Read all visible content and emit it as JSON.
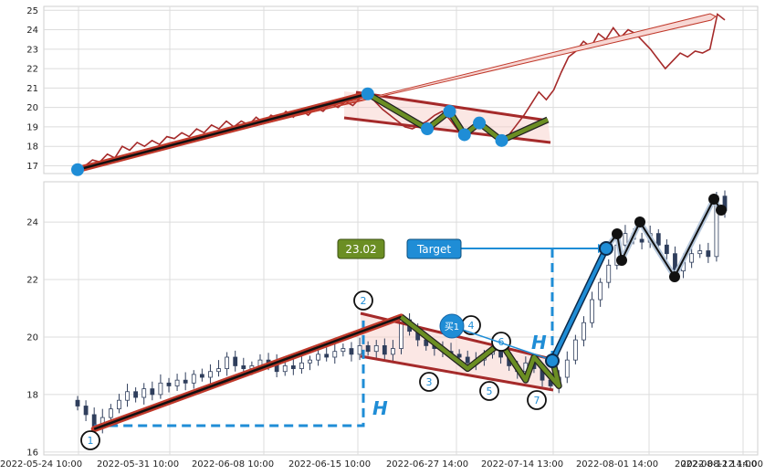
{
  "chart_data": [
    {
      "type": "line",
      "panel": "top",
      "ylim": [
        16.6,
        25.2
      ],
      "yticks": [
        "17",
        "18",
        "19",
        "20",
        "21",
        "22",
        "23",
        "24",
        "25"
      ],
      "grid": true,
      "colors": {
        "price": "#a52a2a",
        "trend": "#c0392b",
        "pattern": "#6b8e23",
        "marker": "#1f8dd6"
      },
      "series": [
        {
          "values": [
            16.8,
            17.0,
            17.3,
            17.2,
            17.6,
            17.4,
            18.0,
            17.8,
            18.2,
            18.0,
            18.3,
            18.1,
            18.5,
            18.4,
            18.7,
            18.5,
            18.9,
            18.7,
            19.1,
            18.9,
            19.3,
            19.0,
            19.3,
            19.1,
            19.5,
            19.2,
            19.6,
            19.4,
            19.8,
            19.5,
            19.9,
            19.6,
            20.0,
            19.8,
            20.2,
            20.0,
            20.3,
            20.1,
            20.5,
            20.7,
            20.3,
            19.9,
            19.6,
            19.3,
            19.0,
            18.9,
            19.1,
            19.3,
            19.6,
            19.8,
            19.4,
            18.9,
            18.6,
            19.0,
            19.2,
            18.9,
            18.5,
            18.3,
            18.6,
            19.1,
            19.6,
            20.2,
            20.8,
            20.4,
            20.9,
            21.8,
            22.6,
            22.9,
            23.4,
            23.1,
            23.8,
            23.5,
            24.1,
            23.6,
            24.0,
            23.8,
            23.4,
            23.0,
            22.5,
            22.0,
            22.4,
            22.8,
            22.6,
            22.9,
            22.8,
            23.0,
            24.8,
            24.5
          ]
        }
      ],
      "markers": [
        [
          0,
          16.8
        ],
        [
          39,
          20.7
        ],
        [
          47,
          18.9
        ],
        [
          50,
          19.8
        ],
        [
          52,
          18.6
        ],
        [
          54,
          19.2
        ],
        [
          57,
          18.3
        ]
      ]
    },
    {
      "type": "line",
      "panel": "bottom",
      "ylim": [
        15.9,
        25.4
      ],
      "yticks": [
        "16",
        "18",
        "20",
        "22",
        "24"
      ],
      "xticks": [
        "2022-05-24 10:00",
        "2022-05-31 10:00",
        "2022-06-08 10:00",
        "2022-06-15 10:00",
        "2022-06-27 14:00",
        "2022-07-14 13:00",
        "2022-08-01 14:00",
        "2022-08-12 14:00",
        "2022-08-22 14:00"
      ],
      "grid": true,
      "colors": {
        "candle": "#2f3e5c",
        "trend": "#a52a2a",
        "pattern": "#6b8e23",
        "arrow": "#1f8dd6",
        "black_path": "#111111"
      },
      "series": [
        {
          "values": [
            17.6,
            17.3,
            16.9,
            17.2,
            17.5,
            17.8,
            18.1,
            17.9,
            18.2,
            18.0,
            18.4,
            18.3,
            18.5,
            18.4,
            18.7,
            18.6,
            18.8,
            18.9,
            19.3,
            19.0,
            18.9,
            19.0,
            19.2,
            19.1,
            18.8,
            19.0,
            18.9,
            19.1,
            19.2,
            19.4,
            19.3,
            19.5,
            19.6,
            19.4,
            19.7,
            19.5,
            19.7,
            19.4,
            19.6,
            20.6,
            20.2,
            19.9,
            19.7,
            19.6,
            19.5,
            19.4,
            19.3,
            19.1,
            19.2,
            19.4,
            19.5,
            19.3,
            19.0,
            18.8,
            19.1,
            18.9,
            18.5,
            18.3,
            18.6,
            19.2,
            19.9,
            20.5,
            21.3,
            21.9,
            22.5,
            23.2,
            23.6,
            23.4,
            23.3,
            23.6,
            23.2,
            22.9,
            22.3,
            22.6,
            22.9,
            23.0,
            22.8,
            24.9,
            24.4
          ]
        }
      ],
      "pattern_points": [
        {
          "label": "1",
          "x": 2,
          "y": 16.8
        },
        {
          "label": "2",
          "x": 39,
          "y": 20.7
        },
        {
          "label": "3",
          "x": 47,
          "y": 18.9
        },
        {
          "label": "4",
          "x": 51,
          "y": 19.8
        },
        {
          "label": "5",
          "x": 54,
          "y": 18.5
        },
        {
          "label": "6",
          "x": 55,
          "y": 19.3
        },
        {
          "label": "7",
          "x": 58,
          "y": 18.3
        }
      ],
      "annotations": {
        "price_box": "23.02",
        "target_label": "Target",
        "buy_label": "买1",
        "height_label": "H"
      }
    }
  ]
}
